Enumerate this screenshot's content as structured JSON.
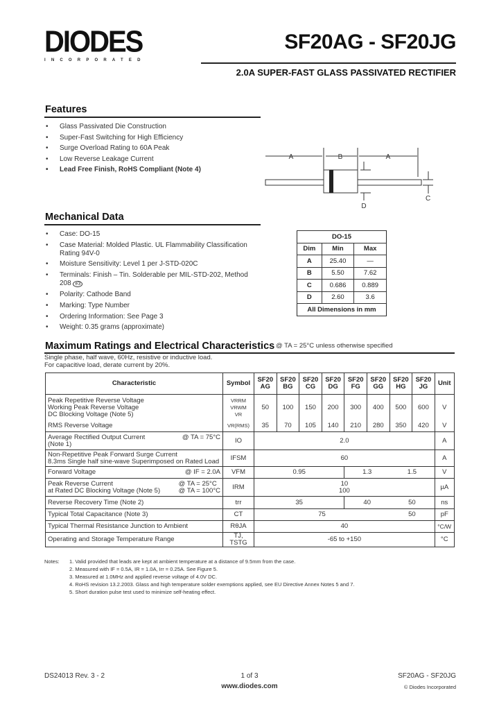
{
  "header": {
    "logo_text": "DIODES",
    "logo_sub": "INCORPORATED",
    "title": "SF20AG - SF20JG",
    "subtitle": "2.0A SUPER-FAST GLASS PASSIVATED RECTIFIER"
  },
  "features": {
    "heading": "Features",
    "items": [
      "Glass Passivated Die Construction",
      "Super-Fast Switching for High Efficiency",
      "Surge Overload Rating to 60A Peak",
      "Low Reverse Leakage Current",
      "Lead Free Finish, RoHS Compliant (Note 4)"
    ]
  },
  "diagram": {
    "labels": {
      "a": "A",
      "b": "B",
      "c": "C",
      "d": "D"
    }
  },
  "mechanical": {
    "heading": "Mechanical Data",
    "items": [
      "Case: DO-15",
      "Case Material: Molded Plastic. UL Flammability Classification Rating 94V-0",
      "Moisture Sensitivity: Level 1 per J-STD-020C",
      "Terminals: Finish – Tin. Solderable per MIL-STD-202, Method 208",
      "Polarity: Cathode Band",
      "Marking: Type Number",
      "Ordering Information: See Page 3",
      "Weight: 0.35 grams (approximate)"
    ],
    "e3_mark": "e3"
  },
  "dim_table": {
    "title": "DO-15",
    "headers": [
      "Dim",
      "Min",
      "Max"
    ],
    "rows": [
      [
        "A",
        "25.40",
        "—"
      ],
      [
        "B",
        "5.50",
        "7.62"
      ],
      [
        "C",
        "0.686",
        "0.889"
      ],
      [
        "D",
        "2.60",
        "3.6"
      ]
    ],
    "footer": "All Dimensions in mm"
  },
  "ratings": {
    "heading": "Maximum Ratings and Electrical Characteristics",
    "condition": "@ TA = 25°C unless otherwise specified",
    "note1": "Single phase, half wave, 60Hz, resistive or inductive load.",
    "note2": "For capacitive load, derate current by 20%.",
    "headers": {
      "characteristic": "Characteristic",
      "symbol": "Symbol",
      "unit": "Unit",
      "parts": [
        [
          "SF20",
          "AG"
        ],
        [
          "SF20",
          "BG"
        ],
        [
          "SF20",
          "CG"
        ],
        [
          "SF20",
          "DG"
        ],
        [
          "SF20",
          "FG"
        ],
        [
          "SF20",
          "GG"
        ],
        [
          "SF20",
          "HG"
        ],
        [
          "SF20",
          "JG"
        ]
      ]
    },
    "voltage": {
      "labels": [
        "Peak Repetitive Reverse Voltage",
        "Working Peak Reverse Voltage",
        "DC Blocking Voltage (Note 5)"
      ],
      "symbols": [
        "VRRM",
        "VRWM",
        "VR"
      ],
      "values": [
        "50",
        "100",
        "150",
        "200",
        "300",
        "400",
        "500",
        "600"
      ],
      "unit": "V"
    },
    "rms": {
      "label": "RMS Reverse Voltage",
      "symbol": "VR(RMS)",
      "values": [
        "35",
        "70",
        "105",
        "140",
        "210",
        "280",
        "350",
        "420"
      ],
      "unit": "V"
    },
    "io": {
      "label": "Average Rectified Output Current",
      "label2": "(Note 1)",
      "cond": "@ TA = 75°C",
      "symbol": "IO",
      "value": "2.0",
      "unit": "A"
    },
    "ifsm": {
      "label": "Non-Repetitive Peak Forward Surge Current",
      "label2": "8.3ms Single half sine-wave Superimposed on Rated Load",
      "symbol": "IFSM",
      "value": "60",
      "unit": "A"
    },
    "vfm": {
      "label": "Forward Voltage",
      "cond": "@ IF = 2.0A",
      "symbol": "VFM",
      "values": [
        "0.95",
        "1.3",
        "1.5"
      ],
      "unit": "V"
    },
    "irm": {
      "label": "Peak Reverse Current",
      "label2": "at Rated DC Blocking Voltage (Note 5)",
      "cond": "@ TA = 25°C",
      "cond2": "@ TA = 100°C",
      "symbol": "IRM",
      "value": "10",
      "value2": "100",
      "unit": "µA"
    },
    "trr": {
      "label": "Reverse Recovery Time (Note 2)",
      "symbol": "trr",
      "values": [
        "35",
        "40",
        "50"
      ],
      "unit": "ns"
    },
    "ct": {
      "label": "Typical Total Capacitance (Note 3)",
      "symbol": "CT",
      "values": [
        "75",
        "50"
      ],
      "unit": "pF"
    },
    "rth": {
      "label": "Typical Thermal Resistance Junction to Ambient",
      "symbol": "RθJA",
      "value": "40",
      "unit": "°C/W"
    },
    "temp": {
      "label": "Operating and Storage Temperature Range",
      "symbol": "TJ, TSTG",
      "value": "-65 to +150",
      "unit": "°C"
    }
  },
  "notes": {
    "label": "Notes:",
    "items": [
      "1. Valid provided that leads are kept at ambient temperature at a distance of 9.5mm from the case.",
      "2. Measured with IF = 0.5A, IR = 1.0A, Irr = 0.25A. See Figure 5.",
      "3. Measured at 1.0MHz and applied reverse voltage of 4.0V DC.",
      "4. RoHS revision 13.2.2003. Glass and high temperature solder exemptions applied, see EU Directive Annex Notes 5 and 7.",
      "5. Short duration pulse test used to minimize self-heating effect."
    ]
  },
  "footer": {
    "doc": "DS24013 Rev. 3 - 2",
    "page": "1 of 3",
    "url": "www.diodes.com",
    "part": "SF20AG - SF20JG",
    "copyright": "© Diodes Incorporated"
  }
}
